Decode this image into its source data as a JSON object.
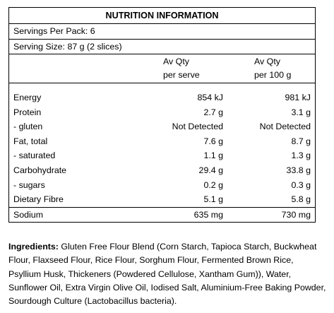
{
  "panel": {
    "title": "NUTRITION INFORMATION",
    "servings_per_pack": "Servings Per Pack: 6",
    "serving_size": "Serving Size: 87 g (2 slices)",
    "columns": [
      {
        "line1": "Av Qty",
        "line2": "per serve"
      },
      {
        "line1": "Av Qty",
        "line2": "per 100 g"
      }
    ],
    "rows": [
      {
        "name": "Energy",
        "per_serve": "854 kJ",
        "per_100g": "981 kJ"
      },
      {
        "name": "Protein",
        "per_serve": "2.7 g",
        "per_100g": "3.1 g"
      },
      {
        "name": " - gluten",
        "per_serve": "Not Detected",
        "per_100g": "Not Detected"
      },
      {
        "name": "Fat, total",
        "per_serve": "7.6 g",
        "per_100g": "8.7 g"
      },
      {
        "name": " - saturated",
        "per_serve": "1.1 g",
        "per_100g": "1.3 g"
      },
      {
        "name": "Carbohydrate",
        "per_serve": "29.4 g",
        "per_100g": "33.8 g"
      },
      {
        "name": " - sugars",
        "per_serve": "0.2 g",
        "per_100g": "0.3 g"
      },
      {
        "name": "Dietary Fibre",
        "per_serve": "5.1 g",
        "per_100g": "5.8 g"
      },
      {
        "name": "Sodium",
        "per_serve": "635 mg",
        "per_100g": "730 mg"
      }
    ]
  },
  "ingredients": {
    "label": "Ingredients:",
    "text": " Gluten Free Flour Blend (Corn Starch, Tapioca Starch, Buckwheat Flour, Flaxseed Flour, Rice Flour, Sorghum Flour, Fermented Brown Rice, Psyllium Husk, Thickeners (Powdered Cellulose, Xantham Gum)), Water, Sunflower Oil, Extra Virgin Olive Oil, Iodised Salt, Aluminium-Free Baking Powder, Sourdough Culture (Lactobacillus bacteria)."
  }
}
